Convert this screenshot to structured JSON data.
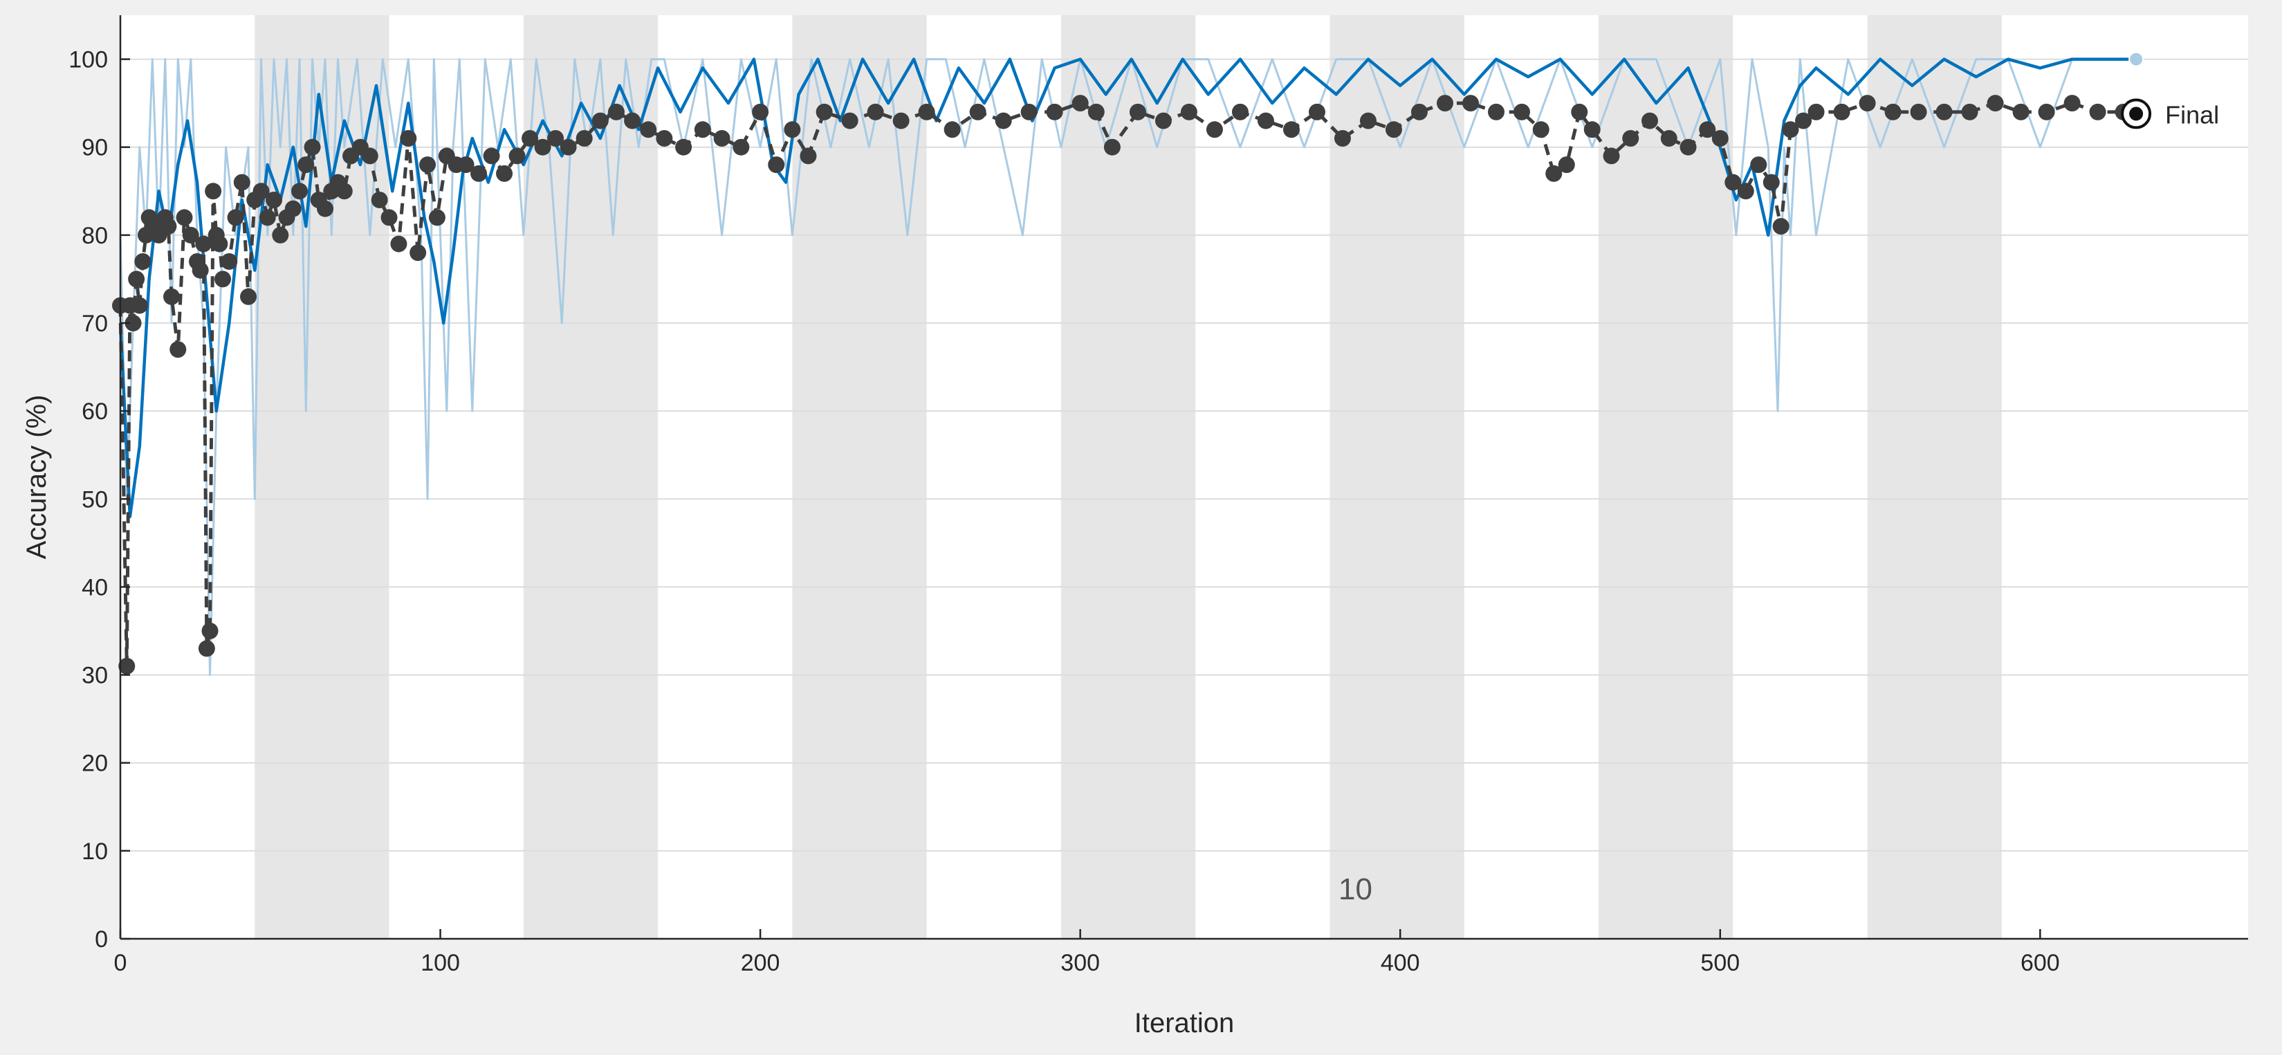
{
  "chart_data": {
    "type": "line",
    "xlabel": "Iteration",
    "ylabel": "Accuracy (%)",
    "xlim": [
      0,
      665
    ],
    "ylim": [
      0,
      105
    ],
    "xticks": [
      0,
      100,
      200,
      300,
      400,
      500,
      600
    ],
    "yticks": [
      0,
      10,
      20,
      30,
      40,
      50,
      60,
      70,
      80,
      90,
      100
    ],
    "grid": "horizontal",
    "epoch_bands": [
      [
        42,
        84
      ],
      [
        126,
        168
      ],
      [
        210,
        252
      ],
      [
        294,
        336
      ],
      [
        378,
        420
      ],
      [
        462,
        504
      ],
      [
        546,
        588
      ]
    ],
    "annotations": [
      {
        "text": "10",
        "x": 386,
        "y": 4.5
      }
    ],
    "final_label": "Final",
    "final_validation": {
      "x": 630,
      "y": 93.8
    },
    "final_training": {
      "x": 630,
      "y": 100
    },
    "colors": {
      "raw_training": "#a9cbe4",
      "smoothed_training": "#0072bd",
      "validation": "#3f3f3f",
      "band": "#e6e6e6",
      "plot_bg": "#ffffff"
    },
    "series": [
      {
        "style": "smoothed-line",
        "x": [
          0,
          3,
          6,
          9,
          12,
          15,
          18,
          21,
          24,
          27,
          30,
          34,
          38,
          42,
          46,
          50,
          54,
          58,
          62,
          66,
          70,
          75,
          80,
          85,
          90,
          95,
          98,
          101,
          104,
          107,
          110,
          115,
          120,
          126,
          132,
          138,
          144,
          150,
          156,
          162,
          168,
          175,
          182,
          190,
          198,
          204,
          208,
          212,
          218,
          225,
          232,
          240,
          248,
          255,
          262,
          270,
          278,
          285,
          292,
          300,
          308,
          316,
          324,
          332,
          340,
          350,
          360,
          370,
          380,
          390,
          400,
          410,
          420,
          430,
          440,
          450,
          460,
          470,
          480,
          490,
          500,
          505,
          510,
          515,
          520,
          525,
          530,
          540,
          550,
          560,
          570,
          580,
          590,
          600,
          610,
          620,
          630
        ],
        "y": [
          70,
          48,
          56,
          75,
          85,
          80,
          88,
          93,
          86,
          73,
          60,
          70,
          84,
          76,
          88,
          84,
          90,
          81,
          96,
          86,
          93,
          88,
          97,
          85,
          95,
          82,
          77,
          70,
          78,
          87,
          91,
          86,
          92,
          88,
          93,
          89,
          95,
          91,
          97,
          92,
          99,
          94,
          99,
          95,
          100,
          88,
          86,
          96,
          100,
          93,
          100,
          95,
          100,
          93,
          99,
          95,
          100,
          93,
          99,
          100,
          96,
          100,
          95,
          100,
          96,
          100,
          95,
          99,
          96,
          100,
          97,
          100,
          96,
          100,
          98,
          100,
          96,
          100,
          95,
          99,
          90,
          84,
          88,
          80,
          93,
          97,
          99,
          96,
          100,
          97,
          100,
          98,
          100,
          99,
          100,
          100,
          100
        ]
      },
      {
        "style": "raw-line",
        "x": [
          0,
          2,
          4,
          6,
          8,
          10,
          12,
          14,
          16,
          18,
          20,
          22,
          24,
          26,
          28,
          30,
          33,
          36,
          40,
          42,
          44,
          46,
          48,
          50,
          52,
          54,
          56,
          58,
          60,
          62,
          64,
          66,
          68,
          70,
          74,
          78,
          82,
          86,
          90,
          94,
          96,
          98,
          100,
          102,
          104,
          106,
          108,
          110,
          114,
          118,
          122,
          126,
          130,
          134,
          138,
          142,
          146,
          150,
          154,
          158,
          162,
          166,
          170,
          176,
          182,
          188,
          194,
          200,
          205,
          210,
          216,
          222,
          228,
          234,
          240,
          246,
          252,
          258,
          264,
          270,
          276,
          282,
          288,
          294,
          300,
          308,
          316,
          324,
          332,
          340,
          350,
          360,
          370,
          380,
          390,
          400,
          410,
          420,
          430,
          440,
          450,
          460,
          470,
          480,
          490,
          500,
          505,
          510,
          515,
          518,
          520,
          522,
          525,
          530,
          540,
          550,
          560,
          570,
          580,
          590,
          600,
          610,
          620,
          630
        ],
        "y": [
          80,
          50,
          70,
          90,
          80,
          100,
          80,
          100,
          70,
          100,
          90,
          100,
          80,
          70,
          30,
          60,
          90,
          80,
          90,
          50,
          100,
          80,
          100,
          90,
          100,
          80,
          100,
          60,
          100,
          90,
          100,
          80,
          100,
          90,
          100,
          80,
          100,
          90,
          100,
          80,
          50,
          100,
          80,
          60,
          90,
          100,
          80,
          60,
          100,
          90,
          100,
          80,
          100,
          90,
          70,
          100,
          90,
          100,
          80,
          100,
          90,
          100,
          100,
          90,
          100,
          80,
          100,
          90,
          100,
          80,
          100,
          90,
          100,
          90,
          100,
          80,
          100,
          100,
          90,
          100,
          90,
          80,
          100,
          90,
          100,
          90,
          100,
          90,
          100,
          100,
          90,
          100,
          90,
          100,
          100,
          90,
          100,
          90,
          100,
          90,
          100,
          90,
          100,
          100,
          90,
          100,
          80,
          100,
          90,
          60,
          90,
          80,
          100,
          80,
          100,
          90,
          100,
          90,
          100,
          100,
          90,
          100,
          100,
          100
        ]
      },
      {
        "style": "marker-line",
        "x": [
          0,
          2,
          3,
          4,
          5,
          6,
          7,
          8,
          9,
          10,
          12,
          14,
          15,
          16,
          18,
          20,
          22,
          24,
          25,
          26,
          27,
          28,
          29,
          30,
          31,
          32,
          34,
          36,
          38,
          40,
          42,
          44,
          46,
          48,
          50,
          52,
          54,
          56,
          58,
          60,
          62,
          64,
          66,
          68,
          70,
          72,
          75,
          78,
          81,
          84,
          87,
          90,
          93,
          96,
          99,
          102,
          105,
          108,
          112,
          116,
          120,
          124,
          128,
          132,
          136,
          140,
          145,
          150,
          155,
          160,
          165,
          170,
          176,
          182,
          188,
          194,
          200,
          205,
          210,
          215,
          220,
          228,
          236,
          244,
          252,
          260,
          268,
          276,
          284,
          292,
          300,
          305,
          310,
          318,
          326,
          334,
          342,
          350,
          358,
          366,
          374,
          382,
          390,
          398,
          406,
          414,
          422,
          430,
          438,
          444,
          448,
          452,
          456,
          460,
          466,
          472,
          478,
          484,
          490,
          496,
          500,
          504,
          508,
          512,
          516,
          519,
          522,
          526,
          530,
          538,
          546,
          554,
          562,
          570,
          578,
          586,
          594,
          602,
          610,
          618,
          626,
          630
        ],
        "y": [
          72,
          31,
          72,
          70,
          75,
          72,
          77,
          80,
          82,
          81,
          80,
          82,
          81,
          73,
          67,
          82,
          80,
          77,
          76,
          79,
          33,
          35,
          85,
          80,
          79,
          75,
          77,
          82,
          86,
          73,
          84,
          85,
          82,
          84,
          80,
          82,
          83,
          85,
          88,
          90,
          84,
          83,
          85,
          86,
          85,
          89,
          90,
          89,
          84,
          82,
          79,
          91,
          78,
          88,
          82,
          89,
          88,
          88,
          87,
          89,
          87,
          89,
          91,
          90,
          91,
          90,
          91,
          93,
          94,
          93,
          92,
          91,
          90,
          92,
          91,
          90,
          94,
          88,
          92,
          89,
          94,
          93,
          94,
          93,
          94,
          92,
          94,
          93,
          94,
          94,
          95,
          94,
          90,
          94,
          93,
          94,
          92,
          94,
          93,
          92,
          94,
          91,
          93,
          92,
          94,
          95,
          95,
          94,
          94,
          92,
          87,
          88,
          94,
          92,
          89,
          91,
          93,
          91,
          90,
          92,
          91,
          86,
          85,
          88,
          86,
          81,
          92,
          93,
          94,
          94,
          95,
          94,
          94,
          94,
          94,
          95,
          94,
          94,
          95,
          94,
          94,
          93.8
        ]
      }
    ]
  }
}
